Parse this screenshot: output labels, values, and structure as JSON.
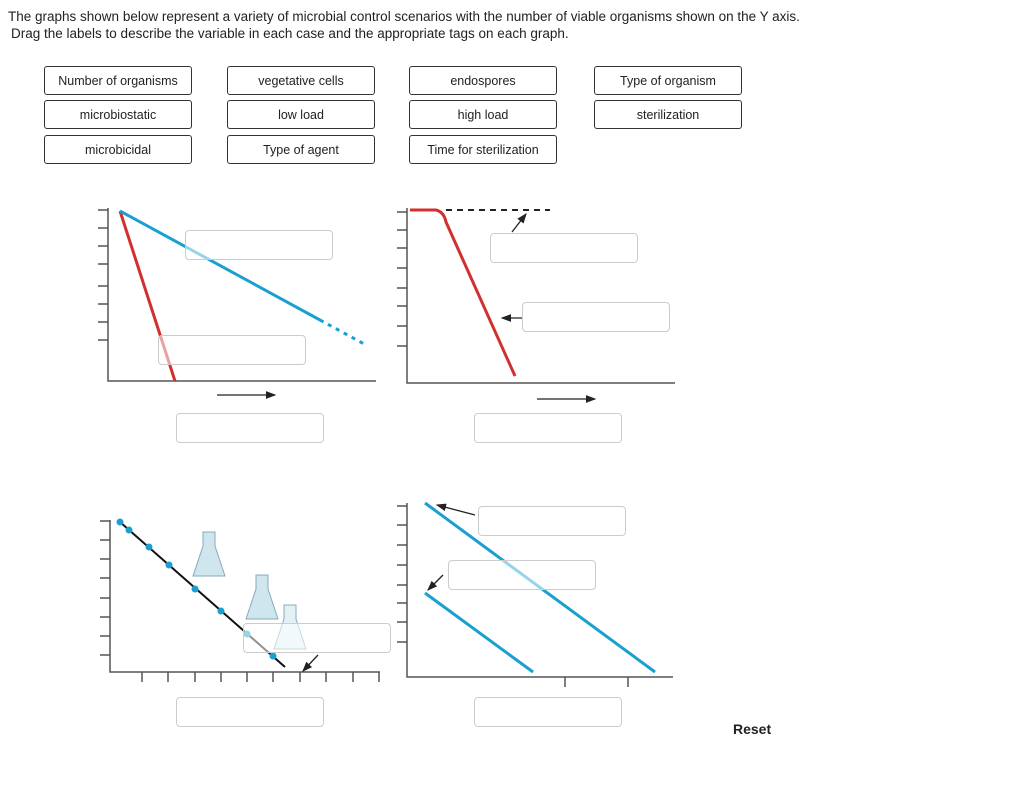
{
  "instructions": [
    "The graphs shown below represent a variety of microbial control scenarios with the number of viable organisms shown on the Y axis.",
    "Drag the labels to describe the variable in each case and the appropriate tags on each graph."
  ],
  "labels": [
    "Number of organisms",
    "vegetative cells",
    "endospores",
    "Type of organism",
    "microbiostatic",
    "low load",
    "high load",
    "sterilization",
    "microbicidal",
    "Type of agent",
    "Time for sterilization"
  ],
  "reset_label": "Reset",
  "colors": {
    "red": "#d03030",
    "blue": "#1aa0d0"
  }
}
